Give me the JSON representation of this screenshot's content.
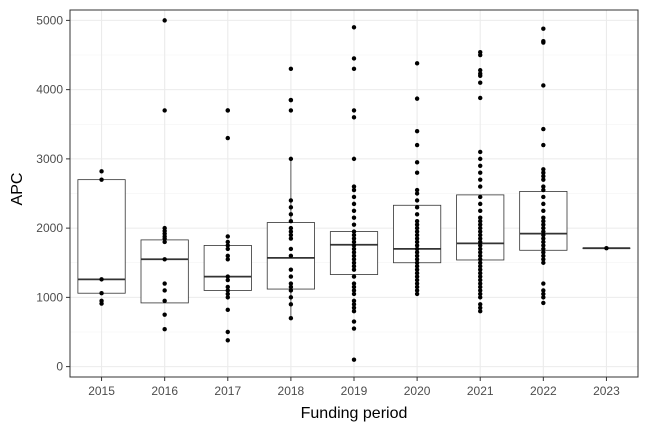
{
  "chart_data": {
    "type": "boxplot",
    "xlabel": "Funding period",
    "ylabel": "APC",
    "ylim": [
      -150,
      5150
    ],
    "yticks": [
      0,
      1000,
      2000,
      3000,
      4000,
      5000
    ],
    "grid": true,
    "categories": [
      "2015",
      "2016",
      "2017",
      "2018",
      "2019",
      "2020",
      "2021",
      "2022",
      "2023"
    ],
    "boxes": [
      {
        "category": "2015",
        "q1": 1060,
        "median": 1260,
        "q3": 2700,
        "whisker_low": 1060,
        "whisker_high": 2700
      },
      {
        "category": "2016",
        "q1": 920,
        "median": 1550,
        "q3": 1830,
        "whisker_low": 920,
        "whisker_high": 1830
      },
      {
        "category": "2017",
        "q1": 1100,
        "median": 1300,
        "q3": 1750,
        "whisker_low": 1100,
        "whisker_high": 1750
      },
      {
        "category": "2018",
        "q1": 1120,
        "median": 1570,
        "q3": 2080,
        "whisker_low": 700,
        "whisker_high": 2980
      },
      {
        "category": "2019",
        "q1": 1330,
        "median": 1760,
        "q3": 1950,
        "whisker_low": 1330,
        "whisker_high": 1950
      },
      {
        "category": "2020",
        "q1": 1500,
        "median": 1700,
        "q3": 2330,
        "whisker_low": 1500,
        "whisker_high": 2330
      },
      {
        "category": "2021",
        "q1": 1540,
        "median": 1780,
        "q3": 2480,
        "whisker_low": 1540,
        "whisker_high": 2480
      },
      {
        "category": "2022",
        "q1": 1680,
        "median": 1920,
        "q3": 2530,
        "whisker_low": 1680,
        "whisker_high": 2530
      },
      {
        "category": "2023",
        "q1": 1710,
        "median": 1710,
        "q3": 1710,
        "whisker_low": 1710,
        "whisker_high": 1710
      }
    ],
    "points": [
      {
        "category": "2015",
        "values": [
          2820,
          2700,
          1260,
          1060,
          950,
          910
        ]
      },
      {
        "category": "2016",
        "values": [
          5000,
          3700,
          2000,
          1960,
          1920,
          1880,
          1850,
          1800,
          1550,
          1200,
          1100,
          950,
          750,
          540
        ]
      },
      {
        "category": "2017",
        "values": [
          3700,
          3700,
          3300,
          1880,
          1800,
          1750,
          1700,
          1600,
          1550,
          1300,
          1250,
          1150,
          1100,
          1050,
          1000,
          820,
          500,
          380
        ]
      },
      {
        "category": "2018",
        "values": [
          4300,
          3850,
          3850,
          3700,
          3000,
          2400,
          2300,
          2200,
          2100,
          2000,
          1950,
          1900,
          1850,
          1700,
          1600,
          1400,
          1300,
          1200,
          1150,
          1100,
          1000,
          900,
          700
        ]
      },
      {
        "category": "2019",
        "values": [
          4900,
          4450,
          4300,
          3700,
          3600,
          3000,
          2600,
          2550,
          2450,
          2350,
          2250,
          2150,
          2050,
          1950,
          1900,
          1850,
          1800,
          1750,
          1700,
          1650,
          1600,
          1550,
          1500,
          1450,
          1400,
          1300,
          1200,
          1150,
          1100,
          1050,
          950,
          900,
          850,
          800,
          650,
          550,
          100
        ]
      },
      {
        "category": "2020",
        "values": [
          4380,
          3870,
          3400,
          3200,
          2950,
          2800,
          2550,
          2500,
          2400,
          2300,
          2200,
          2100,
          2050,
          2000,
          1950,
          1900,
          1850,
          1800,
          1750,
          1700,
          1650,
          1600,
          1550,
          1500,
          1450,
          1400,
          1350,
          1300,
          1250,
          1200,
          1150,
          1100,
          1050
        ]
      },
      {
        "category": "2021",
        "values": [
          4540,
          4500,
          4280,
          4230,
          4200,
          4100,
          3880,
          3100,
          3000,
          2900,
          2800,
          2700,
          2600,
          2450,
          2350,
          2250,
          2150,
          2100,
          2050,
          2000,
          1950,
          1900,
          1850,
          1800,
          1750,
          1700,
          1650,
          1600,
          1550,
          1500,
          1450,
          1400,
          1350,
          1300,
          1250,
          1200,
          1150,
          1100,
          1050,
          1000,
          900,
          850,
          800
        ]
      },
      {
        "category": "2022",
        "values": [
          4880,
          4700,
          4680,
          4060,
          3430,
          3200,
          2850,
          2800,
          2750,
          2700,
          2600,
          2550,
          2450,
          2350,
          2250,
          2150,
          2100,
          2050,
          2000,
          1950,
          1900,
          1850,
          1800,
          1750,
          1700,
          1650,
          1600,
          1550,
          1500,
          1200,
          1100,
          1050,
          1000,
          920
        ]
      },
      {
        "category": "2023",
        "values": [
          1710
        ]
      }
    ]
  }
}
